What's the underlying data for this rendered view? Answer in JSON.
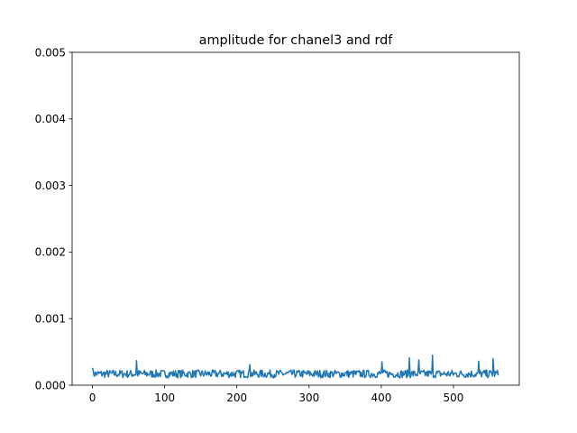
{
  "chart_data": {
    "type": "line",
    "title": "amplitude for chanel3 and rdf",
    "xlabel": "",
    "ylabel": "",
    "xlim": [
      -28.2,
      591.2
    ],
    "ylim": [
      0.0,
      0.005
    ],
    "x_ticks": [
      0,
      100,
      200,
      300,
      400,
      500
    ],
    "x_tick_labels": [
      "0",
      "100",
      "200",
      "300",
      "400",
      "500"
    ],
    "y_ticks": [
      0.0,
      0.001,
      0.002,
      0.003,
      0.004,
      0.005
    ],
    "y_tick_labels": [
      "0.000",
      "0.001",
      "0.002",
      "0.003",
      "0.004",
      "0.005"
    ],
    "grid": false,
    "legend": "none",
    "series": [
      {
        "color": "#1f77b4",
        "x_start": 0,
        "x_step": 1,
        "count": 563,
        "y_typical_range": [
          8e-05,
          0.0003
        ],
        "peaks": [
          {
            "x": 0,
            "y": 0.00026
          },
          {
            "x": 61,
            "y": 0.00037
          },
          {
            "x": 218,
            "y": 0.00031
          },
          {
            "x": 401,
            "y": 0.00035
          },
          {
            "x": 439,
            "y": 0.00041
          },
          {
            "x": 452,
            "y": 0.00038
          },
          {
            "x": 471,
            "y": 0.00045
          },
          {
            "x": 535,
            "y": 0.00036
          },
          {
            "x": 555,
            "y": 0.0004
          }
        ]
      }
    ]
  }
}
